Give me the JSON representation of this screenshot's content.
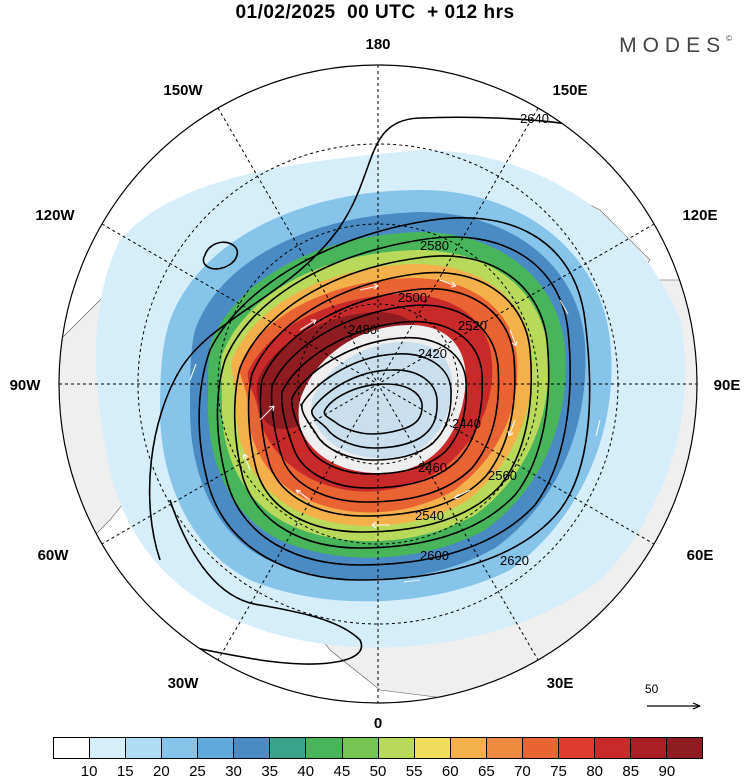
{
  "header": {
    "title": "01/02/2025  00 UTC  + 012 hrs",
    "brand": "MODES"
  },
  "map": {
    "projection": "north polar stereographic",
    "longitude_labels": [
      "180",
      "150E",
      "120E",
      "90E",
      "60E",
      "30E",
      "0",
      "30W",
      "60W",
      "90W",
      "120W",
      "150W"
    ],
    "contour_labels": [
      "2420",
      "2440",
      "2460",
      "2480",
      "2500",
      "2520",
      "2540",
      "2560",
      "2580",
      "2600",
      "2620",
      "2640"
    ],
    "wind_reference": {
      "value": "50"
    }
  },
  "colorbar": {
    "tick_labels": [
      "10",
      "15",
      "20",
      "25",
      "30",
      "35",
      "40",
      "45",
      "50",
      "55",
      "60",
      "65",
      "70",
      "75",
      "80",
      "85",
      "90"
    ],
    "colors": [
      "#ffffff",
      "#d6eefa",
      "#b0dcf3",
      "#86c4ea",
      "#5fa9db",
      "#4a8bc4",
      "#3aa38c",
      "#48b55a",
      "#77c552",
      "#b9d95a",
      "#f2dc5d",
      "#f4b04a",
      "#f08a3d",
      "#ea6433",
      "#df3b2e",
      "#c82a2a",
      "#ab1f24",
      "#8f1c20"
    ]
  }
}
